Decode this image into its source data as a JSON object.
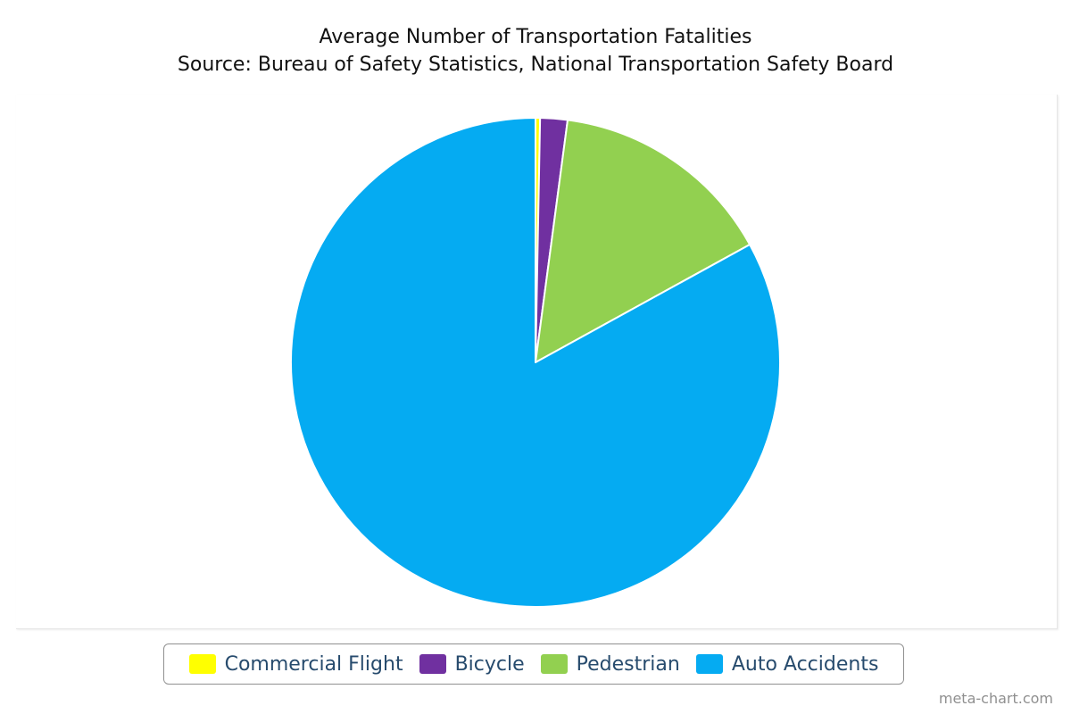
{
  "chart_data": {
    "type": "pie",
    "title": "Average Number of Transportation Fatalities",
    "subtitle": "Source: Bureau of Safety Statistics, National Transportation Safety Board",
    "series": [
      {
        "name": "Commercial Flight",
        "value": 0.3,
        "color": "#ffff00"
      },
      {
        "name": "Bicycle",
        "value": 1.8,
        "color": "#7030a0"
      },
      {
        "name": "Pedestrian",
        "value": 14.9,
        "color": "#92d050"
      },
      {
        "name": "Auto Accidents",
        "value": 83.0,
        "color": "#05abf2"
      }
    ],
    "start_angle_deg": 0,
    "direction": "clockwise",
    "legend_position": "bottom-center"
  },
  "credit": "meta-chart.com"
}
